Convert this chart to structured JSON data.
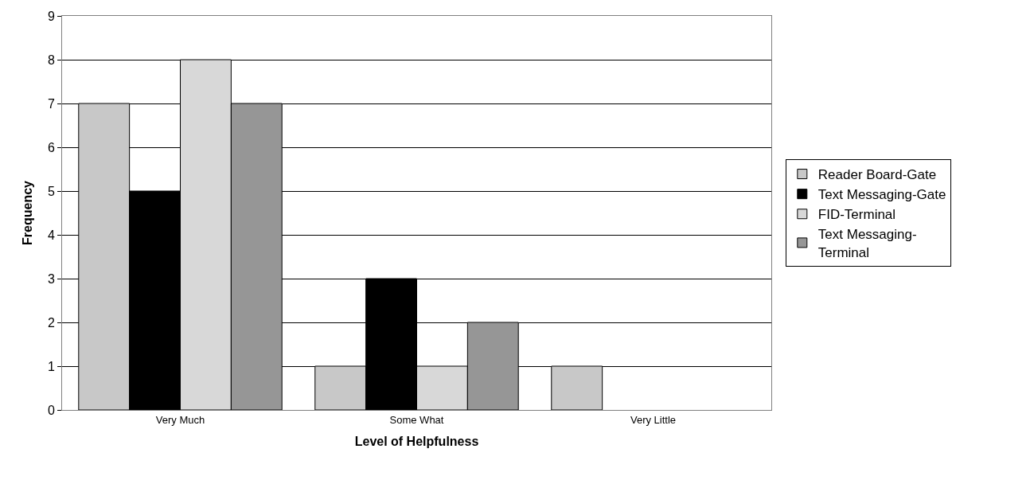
{
  "chart_data": {
    "type": "bar",
    "xlabel": "Level of Helpfulness",
    "ylabel": "Frequency",
    "categories": [
      "Very Much",
      "Some What",
      "Very Little"
    ],
    "series": [
      {
        "name": "Reader Board-Gate",
        "color": "#c8c8c8",
        "values": [
          7,
          1,
          1
        ]
      },
      {
        "name": "Text Messaging-Gate",
        "color": "#000000",
        "values": [
          5,
          3,
          0
        ]
      },
      {
        "name": "FID-Terminal",
        "color": "#d8d8d8",
        "values": [
          8,
          1,
          0
        ]
      },
      {
        "name": "Text Messaging-Terminal",
        "color": "#969696",
        "values": [
          7,
          2,
          0
        ]
      }
    ],
    "ylim": [
      0,
      9
    ],
    "yticks": [
      0,
      1,
      2,
      3,
      4,
      5,
      6,
      7,
      8,
      9
    ],
    "grid": "y",
    "legend": "right"
  }
}
